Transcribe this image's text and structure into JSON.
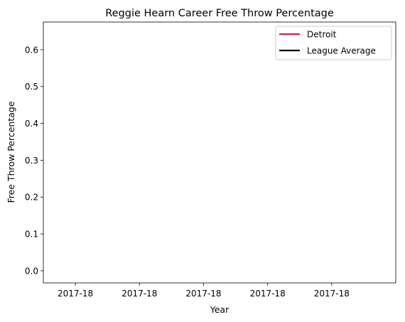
{
  "chart_data": {
    "type": "line",
    "title": "Reggie Hearn Career Free Throw Percentage",
    "xlabel": "Year",
    "ylabel": "Free Throw Percentage",
    "x_tick_labels": [
      "2017-18",
      "2017-18",
      "2017-18",
      "2017-18",
      "2017-18"
    ],
    "y_ticks": [
      0.0,
      0.1,
      0.2,
      0.3,
      0.4,
      0.5,
      0.6
    ],
    "y_tick_labels": [
      "0.0",
      "0.1",
      "0.2",
      "0.3",
      "0.4",
      "0.5",
      "0.6"
    ],
    "ylim": [
      -0.033,
      0.675
    ],
    "xlim": [
      -0.1,
      1.0
    ],
    "x_tick_values": [
      0.0,
      0.2,
      0.4,
      0.6,
      0.8
    ],
    "grid": false,
    "legend_placement": "top-right",
    "series": [
      {
        "name": "Detroit",
        "color": "#DC1E4A",
        "x": [],
        "y": []
      },
      {
        "name": "League Average",
        "color": "#000000",
        "x": [],
        "y": []
      }
    ]
  }
}
